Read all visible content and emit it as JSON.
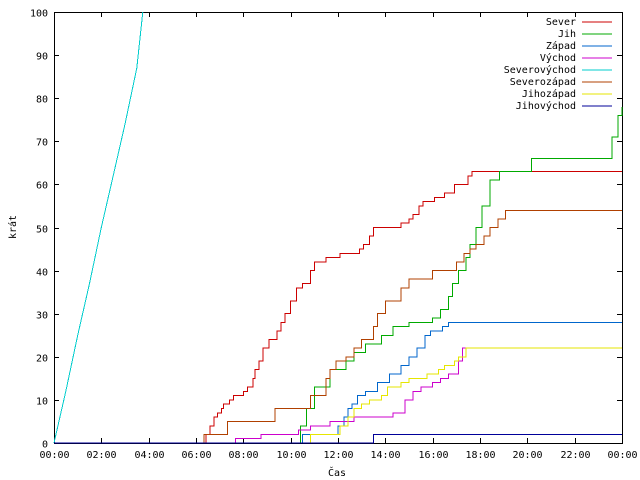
{
  "chart_data": {
    "type": "line",
    "title": "",
    "xlabel": "Čas",
    "ylabel": "krát",
    "xlim": [
      0,
      1440
    ],
    "ylim": [
      0,
      100
    ],
    "grid": false,
    "legend_position": "top-right",
    "x_ticks": [
      {
        "value": 0,
        "label": "00:00"
      },
      {
        "value": 120,
        "label": "02:00"
      },
      {
        "value": 240,
        "label": "04:00"
      },
      {
        "value": 360,
        "label": "06:00"
      },
      {
        "value": 480,
        "label": "08:00"
      },
      {
        "value": 600,
        "label": "10:00"
      },
      {
        "value": 720,
        "label": "12:00"
      },
      {
        "value": 840,
        "label": "14:00"
      },
      {
        "value": 960,
        "label": "16:00"
      },
      {
        "value": 1080,
        "label": "18:00"
      },
      {
        "value": 1200,
        "label": "20:00"
      },
      {
        "value": 1320,
        "label": "22:00"
      },
      {
        "value": 1440,
        "label": "00:00"
      }
    ],
    "y_ticks": [
      {
        "value": 0,
        "label": "0"
      },
      {
        "value": 10,
        "label": "10"
      },
      {
        "value": 20,
        "label": "20"
      },
      {
        "value": 30,
        "label": "30"
      },
      {
        "value": 40,
        "label": "40"
      },
      {
        "value": 50,
        "label": "50"
      },
      {
        "value": 60,
        "label": "60"
      },
      {
        "value": 70,
        "label": "70"
      },
      {
        "value": 80,
        "label": "80"
      },
      {
        "value": 90,
        "label": "90"
      },
      {
        "value": 100,
        "label": "100"
      }
    ],
    "series": [
      {
        "name": "Sever",
        "color": "#cc0000",
        "step": true,
        "x": [
          0,
          385,
          395,
          405,
          415,
          425,
          430,
          445,
          455,
          480,
          490,
          505,
          510,
          520,
          530,
          545,
          555,
          565,
          575,
          585,
          600,
          615,
          630,
          650,
          660,
          690,
          725,
          775,
          785,
          800,
          810,
          880,
          900,
          910,
          925,
          935,
          965,
          990,
          1015,
          1050,
          1060,
          1440
        ],
        "y": [
          0,
          2,
          4,
          6,
          7,
          8,
          9,
          10,
          11,
          12,
          13,
          15,
          17,
          19,
          22,
          24,
          24,
          26,
          28,
          30,
          33,
          36,
          37,
          40,
          42,
          43,
          44,
          45,
          46,
          48,
          50,
          51,
          52,
          53,
          55,
          56,
          57,
          58,
          60,
          62,
          63,
          63
        ]
      },
      {
        "name": "Jih",
        "color": "#00aa00",
        "step": true,
        "x": [
          0,
          625,
          640,
          660,
          700,
          740,
          760,
          790,
          830,
          860,
          900,
          960,
          980,
          1000,
          1010,
          1025,
          1045,
          1055,
          1070,
          1085,
          1105,
          1130,
          1210,
          1415,
          1430,
          1440
        ],
        "y": [
          0,
          4,
          8,
          13,
          17,
          19,
          21,
          23,
          25,
          27,
          28,
          29,
          31,
          34,
          37,
          40,
          43,
          46,
          50,
          55,
          61,
          63,
          66,
          71,
          76,
          78
        ]
      },
      {
        "name": "Západ",
        "color": "#0066cc",
        "step": true,
        "x": [
          0,
          630,
          680,
          720,
          735,
          745,
          755,
          770,
          790,
          820,
          850,
          880,
          900,
          920,
          940,
          955,
          985,
          1000,
          1440
        ],
        "y": [
          0,
          2,
          2,
          4,
          6,
          8,
          9,
          11,
          12,
          14,
          16,
          18,
          20,
          22,
          25,
          26,
          27,
          28,
          28
        ]
      },
      {
        "name": "Východ",
        "color": "#cc00cc",
        "step": true,
        "x": [
          0,
          460,
          525,
          620,
          650,
          690,
          700,
          760,
          860,
          890,
          910,
          930,
          960,
          980,
          1000,
          1025,
          1035,
          1440
        ],
        "y": [
          0,
          1,
          2,
          3,
          4,
          4,
          5,
          6,
          7,
          10,
          12,
          13,
          14,
          15,
          16,
          19,
          22,
          22
        ]
      },
      {
        "name": "Severovýchod",
        "color": "#00cccc",
        "step": false,
        "x": [
          0,
          30,
          60,
          90,
          120,
          150,
          180,
          210,
          225
        ],
        "y": [
          0,
          12,
          25,
          37,
          50,
          62,
          74,
          87,
          100
        ]
      },
      {
        "name": "Severozápad",
        "color": "#b04000",
        "step": true,
        "x": [
          0,
          380,
          440,
          560,
          650,
          690,
          700,
          715,
          740,
          760,
          780,
          810,
          820,
          840,
          880,
          900,
          960,
          1005,
          1020,
          1040,
          1055,
          1070,
          1090,
          1105,
          1125,
          1145,
          1440
        ],
        "y": [
          0,
          2,
          5,
          8,
          11,
          15,
          17,
          19,
          20,
          22,
          24,
          27,
          30,
          33,
          36,
          38,
          40,
          40,
          42,
          44,
          45,
          46,
          48,
          50,
          52,
          54,
          54
        ]
      },
      {
        "name": "Jihozápad",
        "color": "#e6e600",
        "step": true,
        "x": [
          0,
          650,
          690,
          725,
          745,
          760,
          780,
          800,
          830,
          845,
          880,
          900,
          930,
          945,
          975,
          990,
          1015,
          1025,
          1045,
          1440
        ],
        "y": [
          0,
          2,
          2,
          4,
          6,
          8,
          9,
          10,
          11,
          13,
          14,
          15,
          15,
          16,
          17,
          18,
          19,
          20,
          22,
          22
        ]
      },
      {
        "name": "Jihovýchod",
        "color": "#000099",
        "step": true,
        "x": [
          0,
          810,
          1440
        ],
        "y": [
          0,
          2,
          2
        ]
      }
    ]
  }
}
